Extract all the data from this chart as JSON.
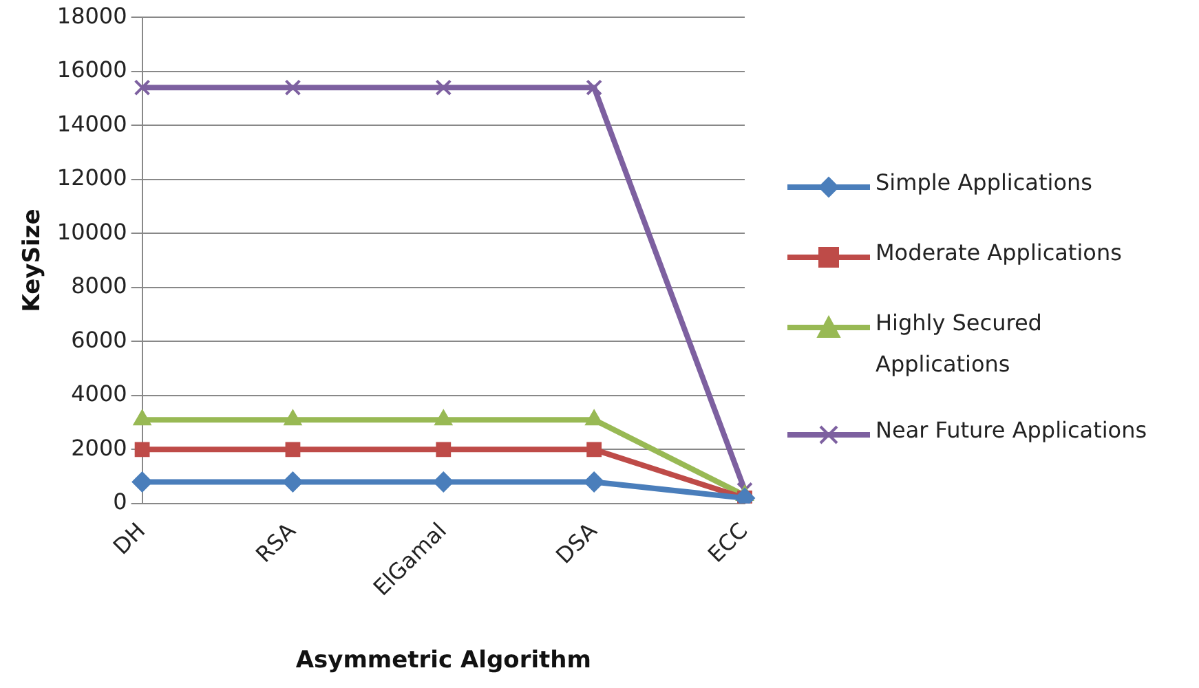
{
  "chart_data": {
    "type": "line",
    "xlabel": "Asymmetric Algorithm",
    "ylabel": "KeySize",
    "categories": [
      "DH",
      "RSA",
      "ElGamal",
      "DSA",
      "ECC"
    ],
    "ylim": [
      0,
      18000
    ],
    "yticks": [
      0,
      2000,
      4000,
      6000,
      8000,
      10000,
      12000,
      14000,
      16000,
      18000
    ],
    "grid": "y",
    "legend": "right",
    "series": [
      {
        "name": "Simple Applications",
        "color": "#4a7ebb",
        "marker": "diamond",
        "values": [
          800,
          800,
          800,
          800,
          200
        ]
      },
      {
        "name": "Moderate Applications",
        "color": "#be4b48",
        "marker": "square",
        "values": [
          2000,
          2000,
          2000,
          2000,
          200
        ]
      },
      {
        "name": "Highly Secured Applications",
        "color": "#98b954",
        "marker": "triangle",
        "values": [
          3100,
          3100,
          3100,
          3100,
          300
        ]
      },
      {
        "name": "Near Future Applications",
        "color": "#7d60a0",
        "marker": "cross",
        "values": [
          15400,
          15400,
          15400,
          15400,
          500
        ]
      }
    ]
  }
}
